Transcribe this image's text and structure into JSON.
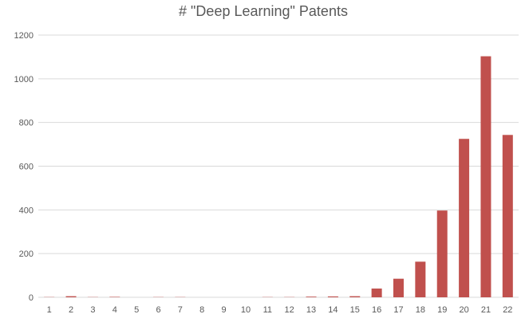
{
  "chart_data": {
    "type": "bar",
    "title": "# \"Deep Learning\" Patents",
    "categories": [
      "1",
      "2",
      "3",
      "4",
      "5",
      "6",
      "7",
      "8",
      "9",
      "10",
      "11",
      "12",
      "13",
      "14",
      "15",
      "16",
      "17",
      "18",
      "19",
      "20",
      "21",
      "22"
    ],
    "values": [
      1,
      5,
      1,
      2,
      0,
      1,
      1,
      0,
      0,
      0,
      1,
      1,
      3,
      4,
      5,
      40,
      85,
      163,
      397,
      725,
      1103,
      743
    ],
    "ylim": [
      0,
      1200
    ],
    "yticks": [
      0,
      200,
      400,
      600,
      800,
      1000,
      1200
    ],
    "grid": true,
    "legend": "none",
    "bar_color": "#c0504d",
    "grid_color": "#d9d9d9"
  }
}
